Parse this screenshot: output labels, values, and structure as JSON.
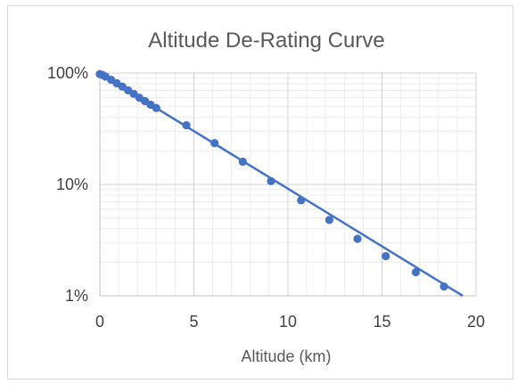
{
  "chart_data": {
    "type": "scatter",
    "title": "Altitude De-Rating Curve",
    "xlabel": "Altitude (km)",
    "ylabel": "",
    "x_scale": "linear",
    "y_scale": "log",
    "xlim": [
      0,
      20
    ],
    "ylim": [
      0.01,
      1
    ],
    "x_ticks": [
      0,
      5,
      10,
      15,
      20
    ],
    "x_tick_labels": [
      "0",
      "5",
      "10",
      "15",
      "20"
    ],
    "y_ticks": [
      0.01,
      0.1,
      1
    ],
    "y_tick_labels": [
      "1%",
      "10%",
      "100%"
    ],
    "grid": true,
    "minor_grid": true,
    "legend": "none",
    "series": [
      {
        "color": "#4472c4",
        "x": [
          0,
          0.15,
          0.3,
          0.6,
          0.9,
          1.2,
          1.5,
          1.8,
          2.1,
          2.4,
          2.7,
          3.0,
          4.6,
          6.1,
          7.6,
          9.1,
          10.7,
          12.2,
          13.7,
          15.2,
          16.8,
          18.3
        ],
        "y": [
          0.98,
          0.96,
          0.93,
          0.87,
          0.81,
          0.755,
          0.7,
          0.65,
          0.6,
          0.56,
          0.52,
          0.485,
          0.34,
          0.235,
          0.16,
          0.107,
          0.072,
          0.048,
          0.0325,
          0.0227,
          0.0163,
          0.0121
        ]
      }
    ],
    "trendline": {
      "color": "#4472c4",
      "x": [
        0,
        3.0,
        19.6
      ],
      "y": [
        1.0,
        0.485,
        0.0093
      ]
    }
  }
}
